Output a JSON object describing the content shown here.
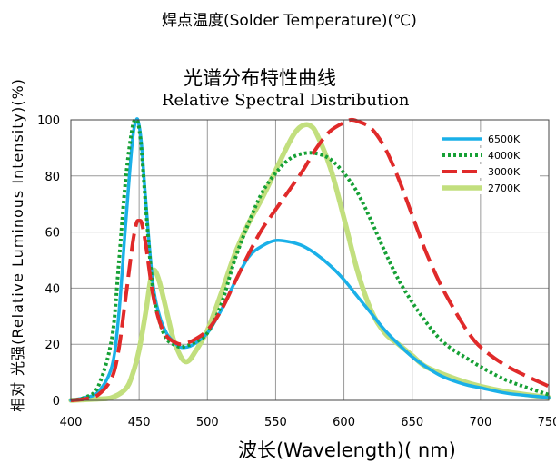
{
  "top_caption": "焊点温度(Solder Temperature)(℃)",
  "chart_data": {
    "type": "line",
    "title": "光谱分布特性曲线",
    "subtitle": "Relative Spectral Distribution",
    "xlabel": "波长(Wavelength)( nm)",
    "ylabel": "相对 光强(Relative Luminous Intensity)(%)",
    "xlim": [
      400,
      750
    ],
    "ylim": [
      0,
      100
    ],
    "x_ticks": [
      400,
      450,
      500,
      550,
      600,
      650,
      700,
      750
    ],
    "y_ticks": [
      0,
      20,
      40,
      60,
      80,
      100
    ],
    "grid": true,
    "legend_position": "top-right",
    "series": [
      {
        "name": "6500K",
        "color": "#1ab0e8",
        "style": "solid",
        "x": [
          400,
          410,
          420,
          430,
          435,
          440,
          445,
          448,
          450,
          452,
          455,
          460,
          465,
          470,
          475,
          480,
          485,
          490,
          500,
          510,
          520,
          530,
          540,
          550,
          560,
          570,
          580,
          590,
          600,
          610,
          620,
          630,
          640,
          650,
          660,
          670,
          680,
          690,
          700,
          720,
          750
        ],
        "y": [
          0,
          1,
          3,
          12,
          30,
          62,
          92,
          100,
          98,
          90,
          70,
          42,
          30,
          24,
          21,
          19,
          19,
          20,
          24,
          32,
          42,
          51,
          55,
          57,
          56.5,
          55,
          52,
          48,
          43,
          37,
          31,
          25,
          20,
          15.5,
          12,
          9,
          7,
          5.5,
          4.5,
          2.5,
          1
        ]
      },
      {
        "name": "4000K",
        "color": "#16a035",
        "style": "dotted",
        "x": [
          400,
          410,
          420,
          430,
          435,
          440,
          445,
          448,
          450,
          452,
          455,
          460,
          465,
          470,
          475,
          480,
          485,
          490,
          500,
          510,
          520,
          530,
          540,
          550,
          560,
          570,
          580,
          590,
          600,
          610,
          620,
          630,
          640,
          650,
          660,
          670,
          680,
          690,
          700,
          720,
          750
        ],
        "y": [
          0,
          1,
          5,
          22,
          48,
          78,
          97,
          100,
          97,
          88,
          68,
          40,
          28,
          22,
          20,
          19,
          19.5,
          20.5,
          24,
          34,
          50,
          63,
          74,
          81,
          86,
          88,
          88,
          86,
          81,
          74,
          64,
          53,
          43,
          35,
          28,
          22,
          18,
          15,
          12,
          7,
          2
        ]
      },
      {
        "name": "3000K",
        "color": "#e02a2a",
        "style": "dashed",
        "x": [
          400,
          410,
          420,
          430,
          435,
          440,
          445,
          448,
          450,
          452,
          455,
          460,
          465,
          470,
          475,
          480,
          485,
          490,
          500,
          510,
          520,
          530,
          540,
          550,
          560,
          570,
          580,
          590,
          600,
          605,
          610,
          620,
          630,
          640,
          650,
          660,
          670,
          680,
          690,
          700,
          720,
          750
        ],
        "y": [
          0,
          0.5,
          2,
          8,
          18,
          36,
          55,
          63,
          64,
          63,
          55,
          38,
          28,
          23,
          21,
          20,
          20.5,
          21.5,
          25,
          32,
          42,
          52,
          61,
          68,
          75,
          82,
          90,
          96,
          99,
          100,
          99.5,
          97,
          90,
          79,
          66,
          53,
          42,
          33,
          25,
          19,
          12,
          5
        ]
      },
      {
        "name": "2700K",
        "color": "#c2df7e",
        "style": "solid-thick",
        "x": [
          400,
          420,
          430,
          440,
          445,
          450,
          455,
          458,
          460,
          462,
          465,
          470,
          475,
          480,
          483,
          486,
          490,
          500,
          510,
          520,
          530,
          540,
          550,
          560,
          565,
          570,
          575,
          580,
          590,
          600,
          610,
          620,
          630,
          640,
          650,
          660,
          680,
          700,
          720,
          750
        ],
        "y": [
          0,
          0.5,
          1,
          4,
          9,
          18,
          32,
          42,
          46,
          46,
          42,
          32,
          22,
          16,
          14,
          14,
          16.5,
          25,
          38,
          52,
          63,
          72,
          82,
          92,
          96,
          98,
          98,
          95,
          83,
          65,
          46,
          32,
          24,
          20,
          16,
          12,
          8,
          5,
          3,
          1
        ]
      }
    ]
  }
}
